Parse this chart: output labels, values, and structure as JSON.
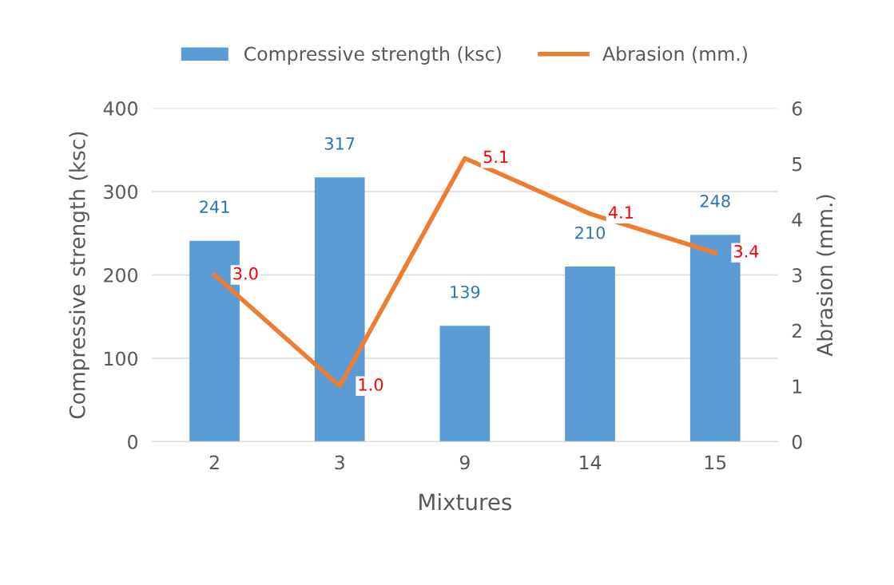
{
  "chart_data": {
    "type": "bar",
    "xlabel": "Mixtures",
    "ylabel": "Compressive strength (ksc)",
    "y2label": "Abrasion (mm.)",
    "categories": [
      "2",
      "3",
      "9",
      "14",
      "15"
    ],
    "series": [
      {
        "name": "Compressive strength (ksc)",
        "color": "#5b9bd5",
        "values": [
          241,
          317,
          139,
          210,
          248
        ],
        "value_labels": [
          "241",
          "317",
          "139",
          "210",
          "248"
        ]
      },
      {
        "name": "Abrasion (mm.)",
        "type": "line",
        "axis": "y2",
        "color": "#ed7d31",
        "values": [
          3.0,
          1.0,
          5.1,
          4.1,
          3.4
        ],
        "value_labels": [
          "3.0",
          "1.0",
          "5.1",
          "4.1",
          "3.4"
        ]
      }
    ],
    "ylim": [
      0,
      400
    ],
    "yticks": [
      0,
      100,
      200,
      300,
      400
    ],
    "y2lim": [
      0,
      6
    ],
    "y2ticks": [
      0,
      1,
      2,
      3,
      4,
      5,
      6
    ],
    "grid": "y",
    "legend": "top",
    "marker": "none",
    "line_style": "solid"
  }
}
